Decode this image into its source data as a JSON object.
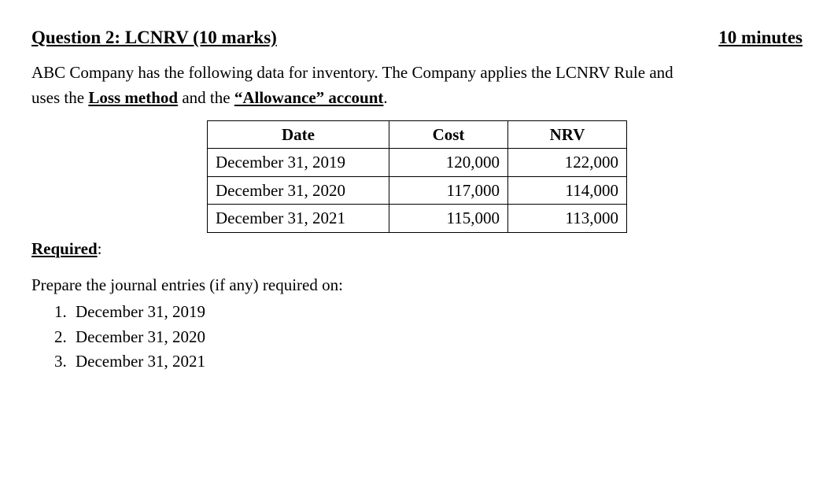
{
  "header": {
    "title": "Question 2: LCNRV (10 marks)",
    "time": "10 minutes"
  },
  "intro": {
    "line1_prefix": "ABC Company has the following data for inventory. The Company applies the LCNRV Rule and",
    "line2_prefix": "uses the ",
    "loss_method": "Loss method",
    "and_the": " and the ",
    "allowance": "“Allowance” account",
    "period": "."
  },
  "table": {
    "headers": {
      "date": "Date",
      "cost": "Cost",
      "nrv": "NRV"
    },
    "rows": [
      {
        "date": "December 31, 2019",
        "cost": "120,000",
        "nrv": "122,000"
      },
      {
        "date": "December 31, 2020",
        "cost": "117,000",
        "nrv": "114,000"
      },
      {
        "date": "December 31, 2021",
        "cost": "115,000",
        "nrv": "113,000"
      }
    ]
  },
  "required_label_bold": "Required",
  "required_label_colon": ":",
  "prepare_text": "Prepare the journal entries (if any) required on:",
  "req_items": [
    "December 31, 2019",
    "December 31, 2020",
    "December 31, 2021"
  ]
}
